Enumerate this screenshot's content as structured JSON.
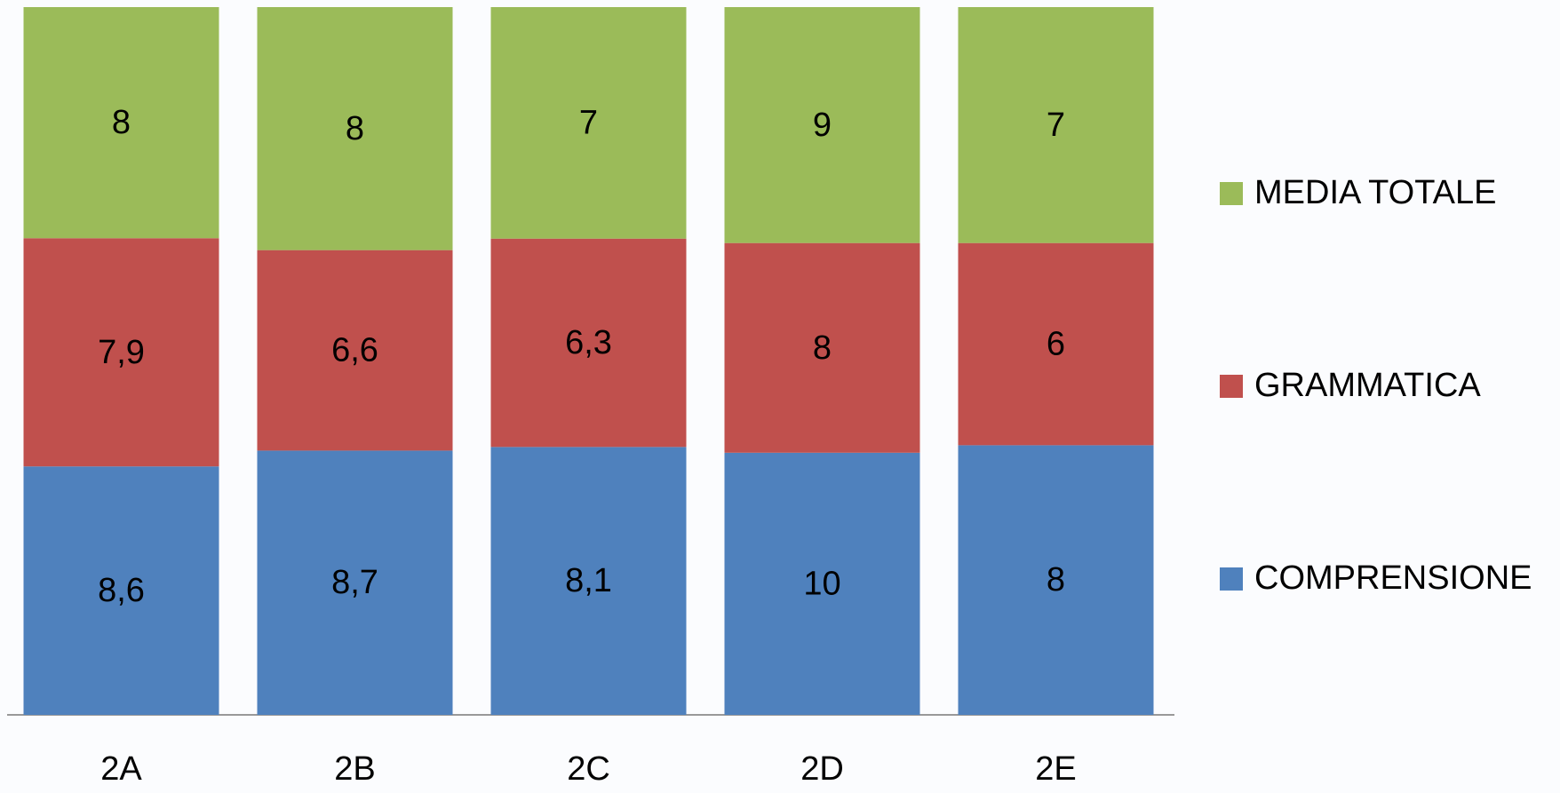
{
  "chart_data": {
    "type": "bar",
    "stacking": "percent",
    "legend": "right",
    "categories": [
      "2A",
      "2B",
      "2C",
      "2D",
      "2E"
    ],
    "series": [
      {
        "name": "COMPRENSIONE",
        "color": "#4f81bd",
        "values": [
          8.6,
          8.7,
          8.1,
          10,
          8
        ],
        "value_labels": [
          "8,6",
          "8,7",
          "8,1",
          "10",
          "8"
        ]
      },
      {
        "name": "GRAMMATICA",
        "color": "#c0504d",
        "values": [
          7.9,
          6.6,
          6.3,
          8,
          6
        ],
        "value_labels": [
          "7,9",
          "6,6",
          "6,3",
          "8",
          "6"
        ]
      },
      {
        "name": "MEDIA TOTALE",
        "color": "#9bbb59",
        "values": [
          8,
          8,
          7,
          9,
          7
        ],
        "value_labels": [
          "8",
          "8",
          "7",
          "9",
          "7"
        ]
      }
    ]
  }
}
